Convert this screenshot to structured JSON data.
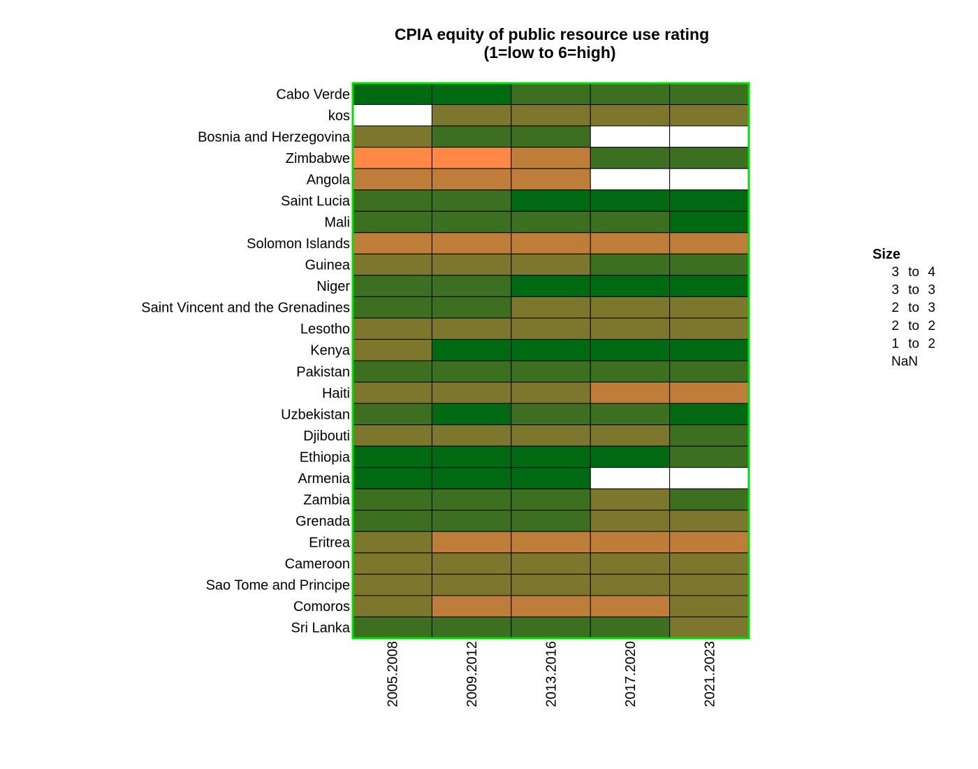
{
  "chart_data": {
    "type": "heatmap",
    "title": "CPIA equity of public resource use rating",
    "subtitle": "(1=low to 6=high)",
    "columns": [
      "2005.2008",
      "2009.2012",
      "2013.2016",
      "2017.2020",
      "2021.2023"
    ],
    "rows": [
      "Cabo Verde",
      "kos",
      "Bosnia and Herzegovina",
      "Zimbabwe",
      "Angola",
      "Saint Lucia",
      "Mali",
      "Solomon Islands",
      "Guinea",
      "Niger",
      "Saint Vincent and the Grenadines",
      "Lesotho",
      "Kenya",
      "Pakistan",
      "Haiti",
      "Uzbekistan",
      "Djibouti",
      "Ethiopia",
      "Armenia",
      "Zambia",
      "Grenada",
      "Eritrea",
      "Cameroon",
      "Sao Tome and Principe",
      "Comoros",
      "Sri Lanka"
    ],
    "cell_classes": [
      [
        0,
        0,
        1,
        1,
        1
      ],
      [
        5,
        2,
        2,
        2,
        2
      ],
      [
        2,
        1,
        1,
        5,
        5
      ],
      [
        4,
        4,
        3,
        1,
        1
      ],
      [
        3,
        3,
        3,
        5,
        5
      ],
      [
        1,
        1,
        0,
        0,
        0
      ],
      [
        1,
        1,
        1,
        1,
        0
      ],
      [
        3,
        3,
        3,
        3,
        3
      ],
      [
        2,
        2,
        2,
        1,
        1
      ],
      [
        1,
        1,
        0,
        0,
        0
      ],
      [
        1,
        1,
        2,
        2,
        2
      ],
      [
        2,
        2,
        2,
        2,
        2
      ],
      [
        2,
        0,
        0,
        0,
        0
      ],
      [
        1,
        1,
        1,
        1,
        1
      ],
      [
        2,
        2,
        2,
        3,
        3
      ],
      [
        1,
        0,
        1,
        1,
        0
      ],
      [
        2,
        2,
        2,
        2,
        1
      ],
      [
        0,
        0,
        0,
        0,
        1
      ],
      [
        0,
        0,
        0,
        5,
        5
      ],
      [
        1,
        1,
        1,
        2,
        1
      ],
      [
        1,
        1,
        1,
        2,
        2
      ],
      [
        2,
        3,
        3,
        3,
        3
      ],
      [
        2,
        2,
        2,
        2,
        2
      ],
      [
        2,
        2,
        2,
        2,
        2
      ],
      [
        2,
        3,
        3,
        3,
        2
      ],
      [
        1,
        1,
        1,
        1,
        2
      ]
    ],
    "legend": {
      "title": "Size",
      "items": [
        {
          "low": "3",
          "sep": "to",
          "high": "4",
          "color": "#006a12"
        },
        {
          "low": "3",
          "sep": "to",
          "high": "3",
          "color": "#3c7020"
        },
        {
          "low": "2",
          "sep": "to",
          "high": "3",
          "color": "#7d762d"
        },
        {
          "low": "2",
          "sep": "to",
          "high": "2",
          "color": "#bf7d3a"
        },
        {
          "low": "1",
          "sep": "to",
          "high": "2",
          "color": "#ff8846"
        },
        {
          "low": "NaN",
          "sep": "",
          "high": "",
          "color": "#ffffff"
        }
      ]
    },
    "colors": {
      "frame": "#00e000",
      "cell_border": "#000000"
    }
  }
}
